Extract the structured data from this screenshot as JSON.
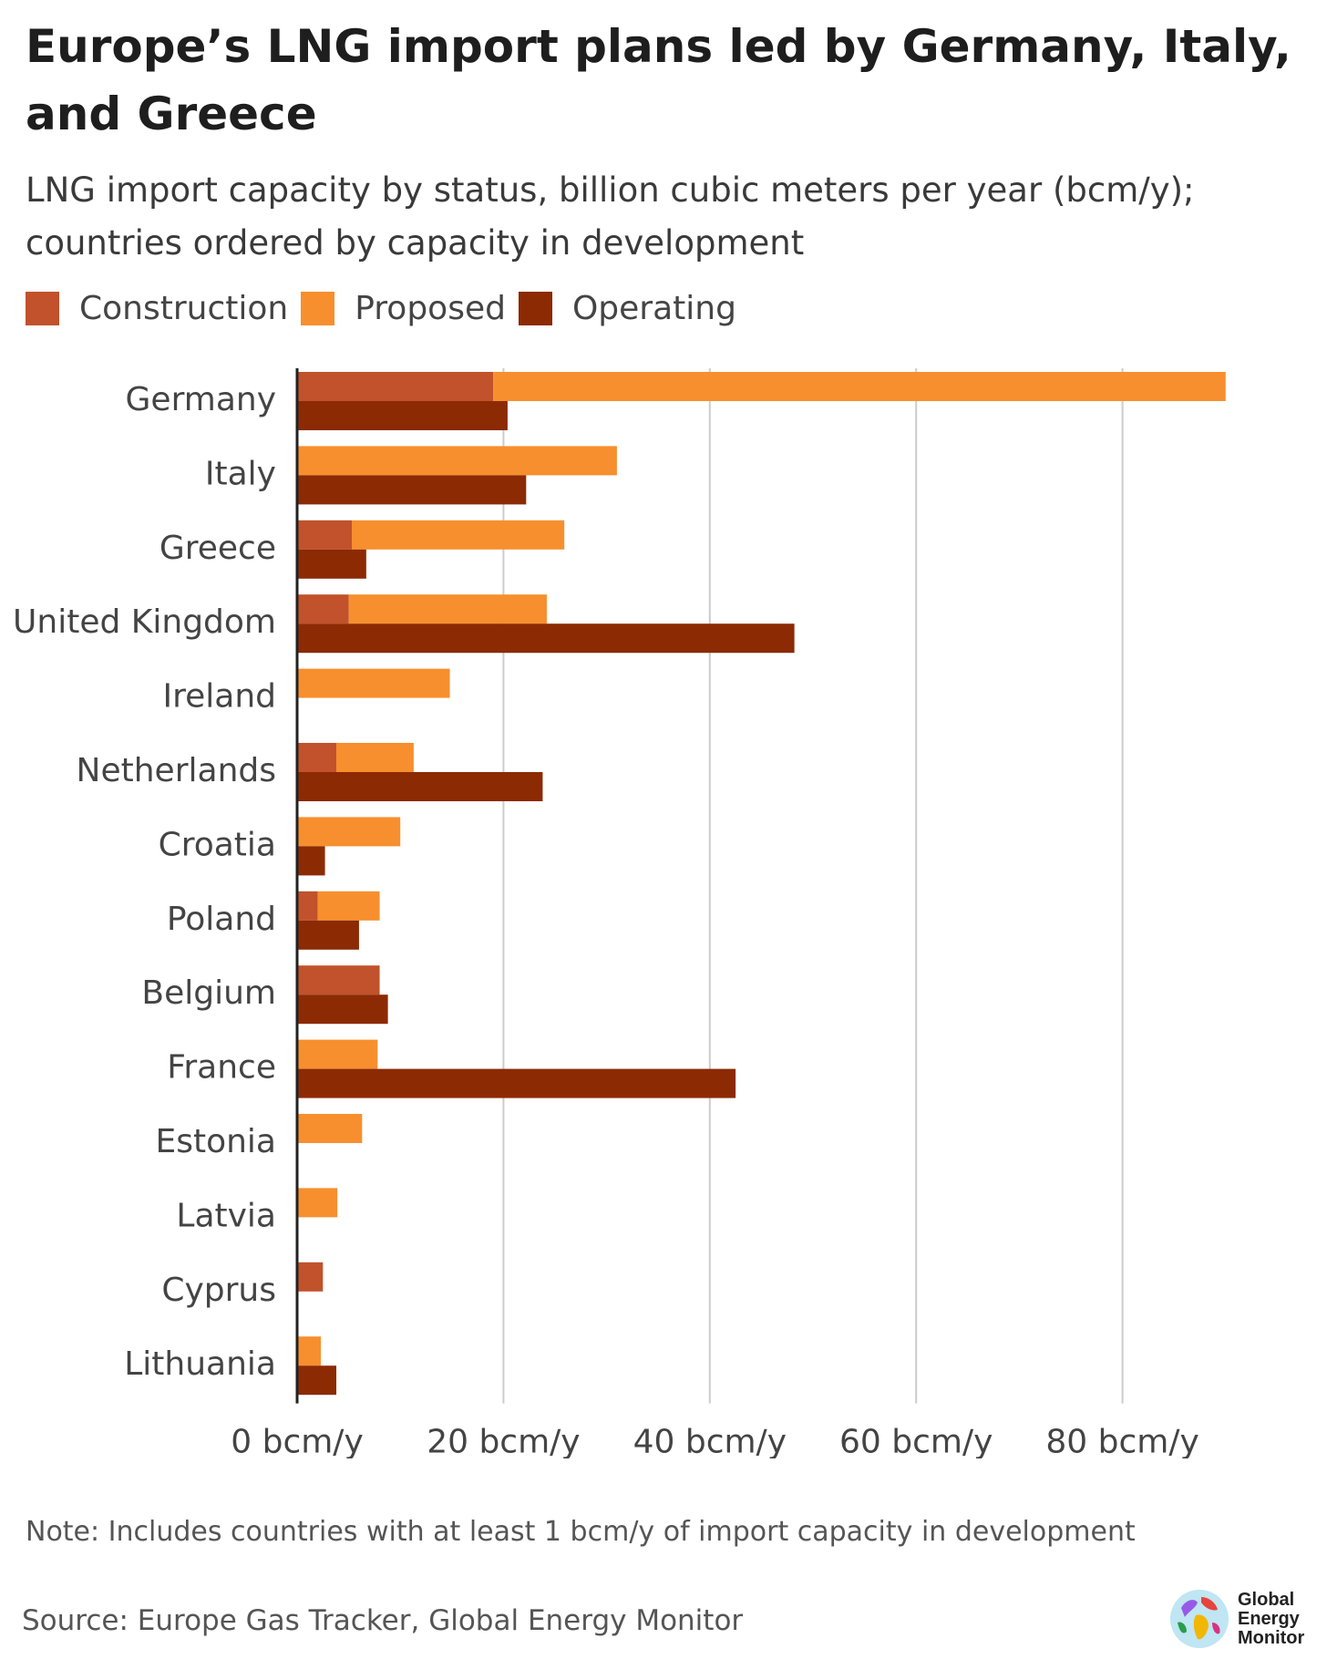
{
  "title": "Europe’s LNG import plans led by Germany, Italy, and Greece",
  "subtitle": "LNG import capacity by status, billion cubic meters per year (bcm/y); countries ordered by capacity in development",
  "note": "Note: Includes countries with at least 1 bcm/y of import capacity in development",
  "source": "Source: Europe Gas Tracker, Global Energy Monitor",
  "logo": {
    "line1": "Global",
    "line2": "Energy",
    "line3": "Monitor"
  },
  "colors": {
    "construction": "#c1522b",
    "proposed": "#f78f2e",
    "operating": "#8c2a04",
    "grid": "#cccccc",
    "axis": "#222222"
  },
  "legend": [
    {
      "label": "Construction",
      "color": "#c1522b"
    },
    {
      "label": "Proposed",
      "color": "#f78f2e"
    },
    {
      "label": "Operating",
      "color": "#8c2a04"
    }
  ],
  "chart_data": {
    "type": "bar",
    "orientation": "horizontal",
    "title": "Europe’s LNG import plans led by Germany, Italy, and Greece",
    "xlabel": "",
    "ylabel": "",
    "xlim": [
      0,
      90
    ],
    "xticks": [
      0,
      20,
      40,
      60,
      80
    ],
    "xtick_labels": [
      "0 bcm/y",
      "20 bcm/y",
      "40 bcm/y",
      "60 bcm/y",
      "80 bcm/y"
    ],
    "grid": true,
    "legend_position": "top-left",
    "categories": [
      "Germany",
      "Italy",
      "Greece",
      "United Kingdom",
      "Ireland",
      "Netherlands",
      "Croatia",
      "Poland",
      "Belgium",
      "France",
      "Estonia",
      "Latvia",
      "Cyprus",
      "Lithuania"
    ],
    "series": [
      {
        "name": "Construction",
        "stack": "development",
        "values": [
          19.0,
          0,
          5.3,
          5.0,
          0,
          3.8,
          0,
          2.0,
          8.0,
          0,
          0,
          0,
          2.5,
          0
        ]
      },
      {
        "name": "Proposed",
        "stack": "development",
        "values": [
          71.0,
          31.0,
          20.6,
          19.2,
          14.8,
          7.5,
          10.0,
          6.0,
          0,
          7.8,
          6.3,
          3.9,
          0,
          2.3
        ]
      },
      {
        "name": "Operating",
        "stack": "operating",
        "values": [
          20.4,
          22.2,
          6.7,
          48.2,
          0,
          23.8,
          2.7,
          6.0,
          8.8,
          42.5,
          0,
          0,
          0,
          3.8
        ]
      }
    ]
  }
}
